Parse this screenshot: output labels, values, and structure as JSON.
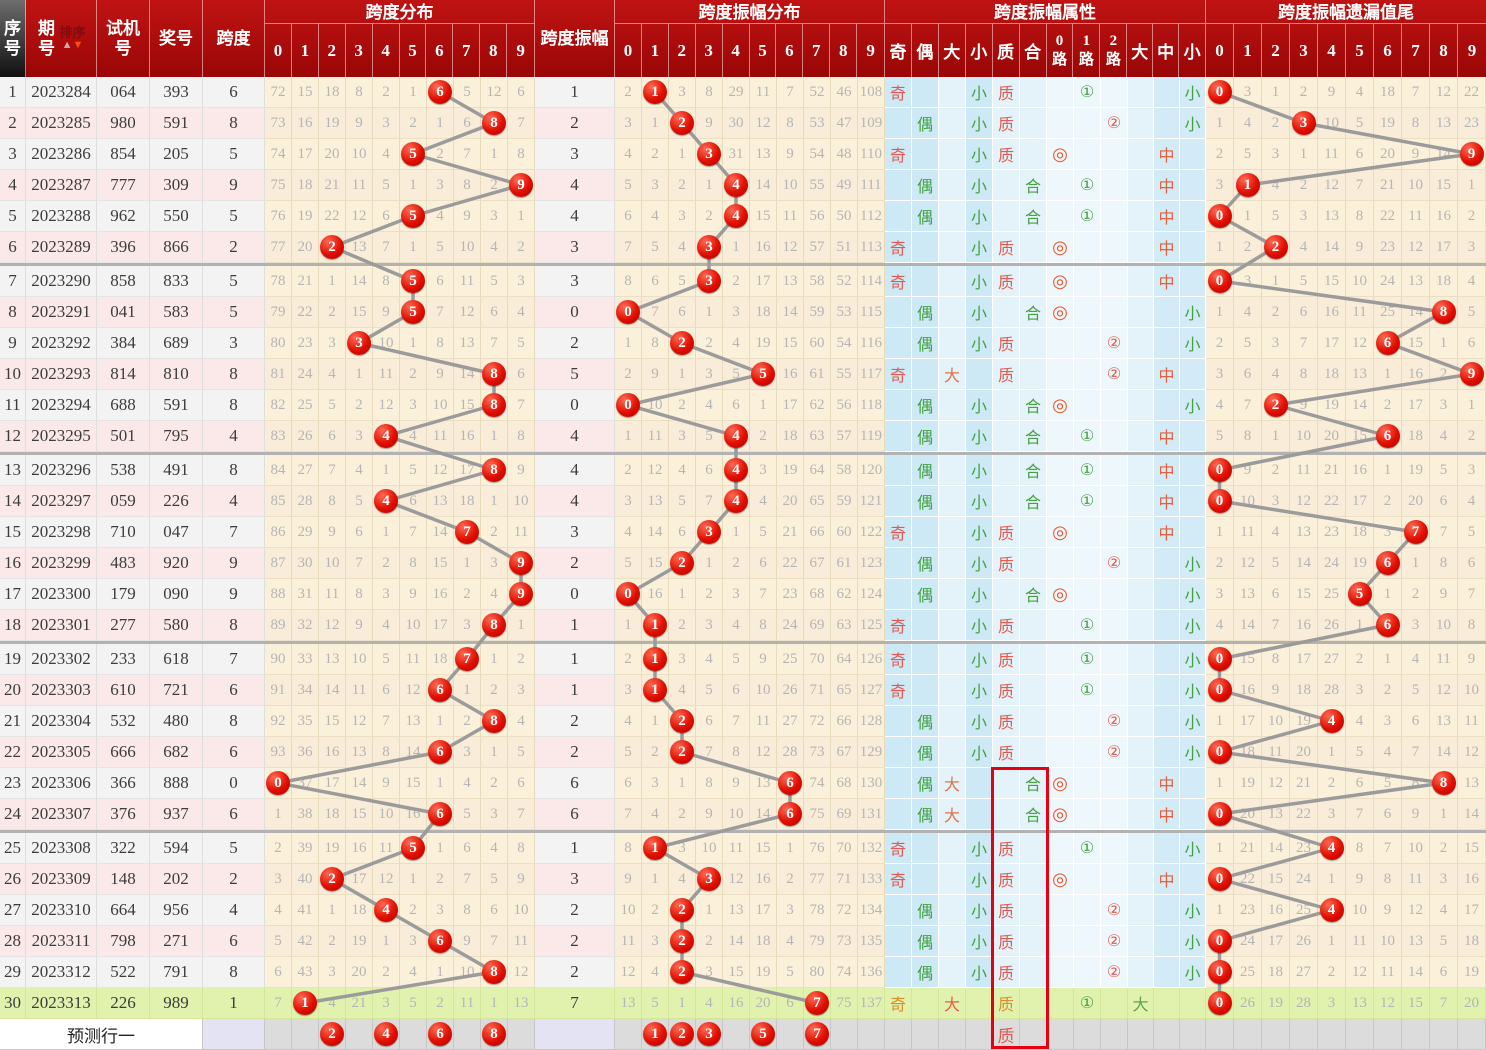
{
  "header": {
    "seq": "序号",
    "period": "期号",
    "sort": "排序",
    "test": "试机号",
    "prize": "奖号",
    "span": "跨度",
    "amp": "跨度振幅",
    "g_dist": "跨度分布",
    "g_ampdist": "跨度振幅分布",
    "g_attr": "跨度振幅属性",
    "g_tail": "跨度振幅遗漏值尾",
    "digits": [
      "0",
      "1",
      "2",
      "3",
      "4",
      "5",
      "6",
      "7",
      "8",
      "9"
    ],
    "attr_cols": [
      "奇",
      "偶",
      "大",
      "小",
      "质",
      "合"
    ],
    "route_cols": [
      "0路",
      "1路",
      "2路"
    ],
    "size_cols": [
      "大",
      "中",
      "小"
    ]
  },
  "glyphs": {
    "route0": "◎",
    "route1": "①",
    "route2": "②"
  },
  "colors": {
    "header_red": "#ab0b0b",
    "seq_header_black": "#181818",
    "circle_red": "#d40000",
    "line_gray": "#9b9b9b",
    "green_row": "#e1f2ae",
    "highlight_box": "#e60012",
    "cream": "#fbf1da",
    "attr_blue": "#cde9f5",
    "lavender": "#e3e3f3",
    "pred_gray": "#dcdcdc",
    "pink_row": "#fbe9e9"
  },
  "rows": [
    {
      "s": 1,
      "p": "2023284",
      "t": "064",
      "z": "393",
      "k": 6,
      "d": [
        72,
        15,
        18,
        8,
        2,
        1,
        6,
        5,
        12,
        6
      ],
      "a": 1,
      "ad": [
        2,
        1,
        3,
        8,
        29,
        11,
        7,
        52,
        46,
        108
      ],
      "oe": "奇",
      "bs": "小",
      "pc": "质",
      "rt": 1,
      "sz": "小",
      "tl": [
        0,
        3,
        1,
        2,
        9,
        4,
        18,
        7,
        12,
        22
      ],
      "ti": 0
    },
    {
      "s": 2,
      "p": "2023285",
      "t": "980",
      "z": "591",
      "k": 8,
      "d": [
        73,
        16,
        19,
        9,
        3,
        2,
        1,
        6,
        8,
        7
      ],
      "a": 2,
      "ad": [
        3,
        1,
        2,
        9,
        30,
        12,
        8,
        53,
        47,
        109
      ],
      "oe": "偶",
      "bs": "小",
      "pc": "质",
      "rt": 2,
      "sz": "小",
      "tl": [
        1,
        4,
        2,
        3,
        10,
        5,
        19,
        8,
        13,
        23
      ],
      "ti": 3
    },
    {
      "s": 3,
      "p": "2023286",
      "t": "854",
      "z": "205",
      "k": 5,
      "d": [
        74,
        17,
        20,
        10,
        4,
        5,
        2,
        7,
        1,
        8
      ],
      "a": 3,
      "ad": [
        4,
        2,
        1,
        3,
        31,
        13,
        9,
        54,
        48,
        110
      ],
      "oe": "奇",
      "bs": "小",
      "pc": "质",
      "rt": 0,
      "sz": "中",
      "tl": [
        2,
        5,
        3,
        1,
        11,
        6,
        20,
        9,
        14,
        9
      ],
      "ti": 9
    },
    {
      "s": 4,
      "p": "2023287",
      "t": "777",
      "z": "309",
      "k": 9,
      "d": [
        75,
        18,
        21,
        11,
        5,
        1,
        3,
        8,
        2,
        9
      ],
      "a": 4,
      "ad": [
        5,
        3,
        2,
        1,
        4,
        14,
        10,
        55,
        49,
        111
      ],
      "oe": "偶",
      "bs": "小",
      "pc": "合",
      "rt": 1,
      "sz": "中",
      "tl": [
        3,
        1,
        4,
        2,
        12,
        7,
        21,
        10,
        15,
        1
      ],
      "ti": 1
    },
    {
      "s": 5,
      "p": "2023288",
      "t": "962",
      "z": "550",
      "k": 5,
      "d": [
        76,
        19,
        22,
        12,
        6,
        5,
        4,
        9,
        3,
        1
      ],
      "a": 4,
      "ad": [
        6,
        4,
        3,
        2,
        4,
        15,
        11,
        56,
        50,
        112
      ],
      "oe": "偶",
      "bs": "小",
      "pc": "合",
      "rt": 1,
      "sz": "中",
      "tl": [
        0,
        1,
        5,
        3,
        13,
        8,
        22,
        11,
        16,
        2
      ],
      "ti": 0
    },
    {
      "s": 6,
      "p": "2023289",
      "t": "396",
      "z": "866",
      "k": 2,
      "d": [
        77,
        20,
        2,
        13,
        7,
        1,
        5,
        10,
        4,
        2
      ],
      "a": 3,
      "ad": [
        7,
        5,
        4,
        3,
        1,
        16,
        12,
        57,
        51,
        113
      ],
      "oe": "奇",
      "bs": "小",
      "pc": "质",
      "rt": 0,
      "sz": "中",
      "tl": [
        1,
        2,
        2,
        4,
        14,
        9,
        23,
        12,
        17,
        3
      ],
      "ti": 2
    },
    {
      "s": 7,
      "p": "2023290",
      "t": "858",
      "z": "833",
      "k": 5,
      "d": [
        78,
        21,
        1,
        14,
        8,
        5,
        6,
        11,
        5,
        3
      ],
      "a": 3,
      "ad": [
        8,
        6,
        5,
        3,
        2,
        17,
        13,
        58,
        52,
        114
      ],
      "oe": "奇",
      "bs": "小",
      "pc": "质",
      "rt": 0,
      "sz": "中",
      "tl": [
        0,
        3,
        1,
        5,
        15,
        10,
        24,
        13,
        18,
        4
      ],
      "ti": 0
    },
    {
      "s": 8,
      "p": "2023291",
      "t": "041",
      "z": "583",
      "k": 5,
      "d": [
        79,
        22,
        2,
        15,
        9,
        5,
        7,
        12,
        6,
        4
      ],
      "a": 0,
      "ad": [
        0,
        7,
        6,
        1,
        3,
        18,
        14,
        59,
        53,
        115
      ],
      "oe": "偶",
      "bs": "小",
      "pc": "合",
      "rt": 0,
      "sz": "小",
      "tl": [
        1,
        4,
        2,
        6,
        16,
        11,
        25,
        14,
        8,
        5
      ],
      "ti": 8
    },
    {
      "s": 9,
      "p": "2023292",
      "t": "384",
      "z": "689",
      "k": 3,
      "d": [
        80,
        23,
        3,
        3,
        10,
        1,
        8,
        13,
        7,
        5
      ],
      "a": 2,
      "ad": [
        1,
        8,
        2,
        2,
        4,
        19,
        15,
        60,
        54,
        116
      ],
      "oe": "偶",
      "bs": "小",
      "pc": "质",
      "rt": 2,
      "sz": "小",
      "tl": [
        2,
        5,
        3,
        7,
        17,
        12,
        6,
        15,
        1,
        6
      ],
      "ti": 6
    },
    {
      "s": 10,
      "p": "2023293",
      "t": "814",
      "z": "810",
      "k": 8,
      "d": [
        81,
        24,
        4,
        1,
        11,
        2,
        9,
        14,
        8,
        6
      ],
      "a": 5,
      "ad": [
        2,
        9,
        1,
        3,
        5,
        5,
        16,
        61,
        55,
        117
      ],
      "oe": "奇",
      "bs": "大",
      "pc": "质",
      "rt": 2,
      "sz": "中",
      "tl": [
        3,
        6,
        4,
        8,
        18,
        13,
        1,
        16,
        2,
        9
      ],
      "ti": 9
    },
    {
      "s": 11,
      "p": "2023294",
      "t": "688",
      "z": "591",
      "k": 8,
      "d": [
        82,
        25,
        5,
        2,
        12,
        3,
        10,
        15,
        8,
        7
      ],
      "a": 0,
      "ad": [
        0,
        10,
        2,
        4,
        6,
        1,
        17,
        62,
        56,
        118
      ],
      "oe": "偶",
      "bs": "小",
      "pc": "合",
      "rt": 0,
      "sz": "小",
      "tl": [
        4,
        7,
        2,
        9,
        19,
        14,
        2,
        17,
        3,
        1
      ],
      "ti": 2
    },
    {
      "s": 12,
      "p": "2023295",
      "t": "501",
      "z": "795",
      "k": 4,
      "d": [
        83,
        26,
        6,
        3,
        4,
        4,
        11,
        16,
        1,
        8
      ],
      "a": 4,
      "ad": [
        1,
        11,
        3,
        5,
        4,
        2,
        18,
        63,
        57,
        119
      ],
      "oe": "偶",
      "bs": "小",
      "pc": "合",
      "rt": 1,
      "sz": "中",
      "tl": [
        5,
        8,
        1,
        10,
        20,
        15,
        6,
        18,
        4,
        2
      ],
      "ti": 6
    },
    {
      "s": 13,
      "p": "2023296",
      "t": "538",
      "z": "491",
      "k": 8,
      "d": [
        84,
        27,
        7,
        4,
        1,
        5,
        12,
        17,
        8,
        9
      ],
      "a": 4,
      "ad": [
        2,
        12,
        4,
        6,
        4,
        3,
        19,
        64,
        58,
        120
      ],
      "oe": "偶",
      "bs": "小",
      "pc": "合",
      "rt": 1,
      "sz": "中",
      "tl": [
        0,
        9,
        2,
        11,
        21,
        16,
        1,
        19,
        5,
        3
      ],
      "ti": 0
    },
    {
      "s": 14,
      "p": "2023297",
      "t": "059",
      "z": "226",
      "k": 4,
      "d": [
        85,
        28,
        8,
        5,
        4,
        6,
        13,
        18,
        1,
        10
      ],
      "a": 4,
      "ad": [
        3,
        13,
        5,
        7,
        4,
        4,
        20,
        65,
        59,
        121
      ],
      "oe": "偶",
      "bs": "小",
      "pc": "合",
      "rt": 1,
      "sz": "中",
      "tl": [
        0,
        10,
        3,
        12,
        22,
        17,
        2,
        20,
        6,
        4
      ],
      "ti": 0
    },
    {
      "s": 15,
      "p": "2023298",
      "t": "710",
      "z": "047",
      "k": 7,
      "d": [
        86,
        29,
        9,
        6,
        1,
        7,
        14,
        7,
        2,
        11
      ],
      "a": 3,
      "ad": [
        4,
        14,
        6,
        3,
        1,
        5,
        21,
        66,
        60,
        122
      ],
      "oe": "奇",
      "bs": "小",
      "pc": "质",
      "rt": 0,
      "sz": "中",
      "tl": [
        1,
        11,
        4,
        13,
        23,
        18,
        3,
        7,
        7,
        5
      ],
      "ti": 7
    },
    {
      "s": 16,
      "p": "2023299",
      "t": "483",
      "z": "920",
      "k": 9,
      "d": [
        87,
        30,
        10,
        7,
        2,
        8,
        15,
        1,
        3,
        9
      ],
      "a": 2,
      "ad": [
        5,
        15,
        2,
        1,
        2,
        6,
        22,
        67,
        61,
        123
      ],
      "oe": "偶",
      "bs": "小",
      "pc": "质",
      "rt": 2,
      "sz": "小",
      "tl": [
        2,
        12,
        5,
        14,
        24,
        19,
        6,
        1,
        8,
        6
      ],
      "ti": 6
    },
    {
      "s": 17,
      "p": "2023300",
      "t": "179",
      "z": "090",
      "k": 9,
      "d": [
        88,
        31,
        11,
        8,
        3,
        9,
        16,
        2,
        4,
        9
      ],
      "a": 0,
      "ad": [
        0,
        16,
        1,
        2,
        3,
        7,
        23,
        68,
        62,
        124
      ],
      "oe": "偶",
      "bs": "小",
      "pc": "合",
      "rt": 0,
      "sz": "小",
      "tl": [
        3,
        13,
        6,
        15,
        25,
        5,
        1,
        2,
        9,
        7
      ],
      "ti": 5
    },
    {
      "s": 18,
      "p": "2023301",
      "t": "277",
      "z": "580",
      "k": 8,
      "d": [
        89,
        32,
        12,
        9,
        4,
        10,
        17,
        3,
        8,
        1
      ],
      "a": 1,
      "ad": [
        1,
        1,
        2,
        3,
        4,
        8,
        24,
        69,
        63,
        125
      ],
      "oe": "奇",
      "bs": "小",
      "pc": "质",
      "rt": 1,
      "sz": "小",
      "tl": [
        4,
        14,
        7,
        16,
        26,
        1,
        6,
        3,
        10,
        8
      ],
      "ti": 6
    },
    {
      "s": 19,
      "p": "2023302",
      "t": "233",
      "z": "618",
      "k": 7,
      "d": [
        90,
        33,
        13,
        10,
        5,
        11,
        18,
        7,
        1,
        2
      ],
      "a": 1,
      "ad": [
        2,
        1,
        3,
        4,
        5,
        9,
        25,
        70,
        64,
        126
      ],
      "oe": "奇",
      "bs": "小",
      "pc": "质",
      "rt": 1,
      "sz": "小",
      "tl": [
        0,
        15,
        8,
        17,
        27,
        2,
        1,
        4,
        11,
        9
      ],
      "ti": 0
    },
    {
      "s": 20,
      "p": "2023303",
      "t": "610",
      "z": "721",
      "k": 6,
      "d": [
        91,
        34,
        14,
        11,
        6,
        12,
        6,
        1,
        2,
        3
      ],
      "a": 1,
      "ad": [
        3,
        1,
        4,
        5,
        6,
        10,
        26,
        71,
        65,
        127
      ],
      "oe": "奇",
      "bs": "小",
      "pc": "质",
      "rt": 1,
      "sz": "小",
      "tl": [
        0,
        16,
        9,
        18,
        28,
        3,
        2,
        5,
        12,
        10
      ],
      "ti": 0
    },
    {
      "s": 21,
      "p": "2023304",
      "t": "532",
      "z": "480",
      "k": 8,
      "d": [
        92,
        35,
        15,
        12,
        7,
        13,
        1,
        2,
        8,
        4
      ],
      "a": 2,
      "ad": [
        4,
        1,
        2,
        6,
        7,
        11,
        27,
        72,
        66,
        128
      ],
      "oe": "偶",
      "bs": "小",
      "pc": "质",
      "rt": 2,
      "sz": "小",
      "tl": [
        1,
        17,
        10,
        19,
        4,
        4,
        3,
        6,
        13,
        11
      ],
      "ti": 4
    },
    {
      "s": 22,
      "p": "2023305",
      "t": "666",
      "z": "682",
      "k": 6,
      "d": [
        93,
        36,
        16,
        13,
        8,
        14,
        6,
        3,
        1,
        5
      ],
      "a": 2,
      "ad": [
        5,
        2,
        2,
        7,
        8,
        12,
        28,
        73,
        67,
        129
      ],
      "oe": "偶",
      "bs": "小",
      "pc": "质",
      "rt": 2,
      "sz": "小",
      "tl": [
        0,
        18,
        11,
        20,
        1,
        5,
        4,
        7,
        14,
        12
      ],
      "ti": 0
    },
    {
      "s": 23,
      "p": "2023306",
      "t": "366",
      "z": "888",
      "k": 0,
      "d": [
        0,
        37,
        17,
        14,
        9,
        15,
        1,
        4,
        2,
        6
      ],
      "a": 6,
      "ad": [
        6,
        3,
        1,
        8,
        9,
        13,
        6,
        74,
        68,
        130
      ],
      "oe": "偶",
      "bs": "大",
      "pc": "合",
      "rt": 0,
      "sz": "中",
      "tl": [
        1,
        19,
        12,
        21,
        2,
        6,
        5,
        8,
        8,
        13
      ],
      "ti": 8
    },
    {
      "s": 24,
      "p": "2023307",
      "t": "376",
      "z": "937",
      "k": 6,
      "d": [
        1,
        38,
        18,
        15,
        10,
        16,
        6,
        5,
        3,
        7
      ],
      "a": 6,
      "ad": [
        7,
        4,
        2,
        9,
        10,
        14,
        6,
        75,
        69,
        131
      ],
      "oe": "偶",
      "bs": "大",
      "pc": "合",
      "rt": 0,
      "sz": "中",
      "tl": [
        0,
        20,
        13,
        22,
        3,
        7,
        6,
        9,
        1,
        14
      ],
      "ti": 0
    },
    {
      "s": 25,
      "p": "2023308",
      "t": "322",
      "z": "594",
      "k": 5,
      "d": [
        2,
        39,
        19,
        16,
        11,
        5,
        1,
        6,
        4,
        8
      ],
      "a": 1,
      "ad": [
        8,
        1,
        3,
        10,
        11,
        15,
        1,
        76,
        70,
        132
      ],
      "oe": "奇",
      "bs": "小",
      "pc": "质",
      "rt": 1,
      "sz": "小",
      "tl": [
        1,
        21,
        14,
        23,
        4,
        8,
        7,
        10,
        2,
        15
      ],
      "ti": 4
    },
    {
      "s": 26,
      "p": "2023309",
      "t": "148",
      "z": "202",
      "k": 2,
      "d": [
        3,
        40,
        2,
        17,
        12,
        1,
        2,
        7,
        5,
        9
      ],
      "a": 3,
      "ad": [
        9,
        1,
        4,
        3,
        12,
        16,
        2,
        77,
        71,
        133
      ],
      "oe": "奇",
      "bs": "小",
      "pc": "质",
      "rt": 0,
      "sz": "中",
      "tl": [
        0,
        22,
        15,
        24,
        1,
        9,
        8,
        11,
        3,
        16
      ],
      "ti": 0
    },
    {
      "s": 27,
      "p": "2023310",
      "t": "664",
      "z": "956",
      "k": 4,
      "d": [
        4,
        41,
        1,
        18,
        4,
        2,
        3,
        8,
        6,
        10
      ],
      "a": 2,
      "ad": [
        10,
        2,
        2,
        1,
        13,
        17,
        3,
        78,
        72,
        134
      ],
      "oe": "偶",
      "bs": "小",
      "pc": "质",
      "rt": 2,
      "sz": "小",
      "tl": [
        1,
        23,
        16,
        25,
        4,
        10,
        9,
        12,
        4,
        17
      ],
      "ti": 4
    },
    {
      "s": 28,
      "p": "2023311",
      "t": "798",
      "z": "271",
      "k": 6,
      "d": [
        5,
        42,
        2,
        19,
        1,
        3,
        6,
        9,
        7,
        11
      ],
      "a": 2,
      "ad": [
        11,
        3,
        2,
        2,
        14,
        18,
        4,
        79,
        73,
        135
      ],
      "oe": "偶",
      "bs": "小",
      "pc": "质",
      "rt": 2,
      "sz": "小",
      "tl": [
        0,
        24,
        17,
        26,
        1,
        11,
        10,
        13,
        5,
        18
      ],
      "ti": 0
    },
    {
      "s": 29,
      "p": "2023312",
      "t": "522",
      "z": "791",
      "k": 8,
      "d": [
        6,
        43,
        3,
        20,
        2,
        4,
        1,
        10,
        8,
        12
      ],
      "a": 2,
      "ad": [
        12,
        4,
        2,
        3,
        15,
        19,
        5,
        80,
        74,
        136
      ],
      "oe": "偶",
      "bs": "小",
      "pc": "质",
      "rt": 2,
      "sz": "小",
      "tl": [
        0,
        25,
        18,
        27,
        2,
        12,
        11,
        14,
        6,
        19
      ],
      "ti": 0
    },
    {
      "s": 30,
      "p": "2023313",
      "t": "226",
      "z": "989",
      "k": 1,
      "d": [
        7,
        1,
        4,
        21,
        3,
        5,
        2,
        11,
        1,
        13
      ],
      "a": 7,
      "ad": [
        13,
        5,
        1,
        4,
        16,
        20,
        6,
        7,
        75,
        137
      ],
      "oe": "奇",
      "bs": "大",
      "pc": "质",
      "rt": 1,
      "sz": "大",
      "tl": [
        0,
        26,
        19,
        28,
        3,
        13,
        12,
        15,
        7,
        20
      ],
      "ti": 0,
      "latest": true
    }
  ],
  "separators_after": [
    6,
    12,
    18,
    24
  ],
  "prediction": {
    "label": "预测行一",
    "span_circles": [
      2,
      4,
      6,
      8
    ],
    "amp_circles": [
      1,
      2,
      3,
      5,
      7
    ],
    "prime": "质"
  },
  "highlight": {
    "from_seq": 23,
    "columns": [
      "质",
      "合"
    ]
  }
}
